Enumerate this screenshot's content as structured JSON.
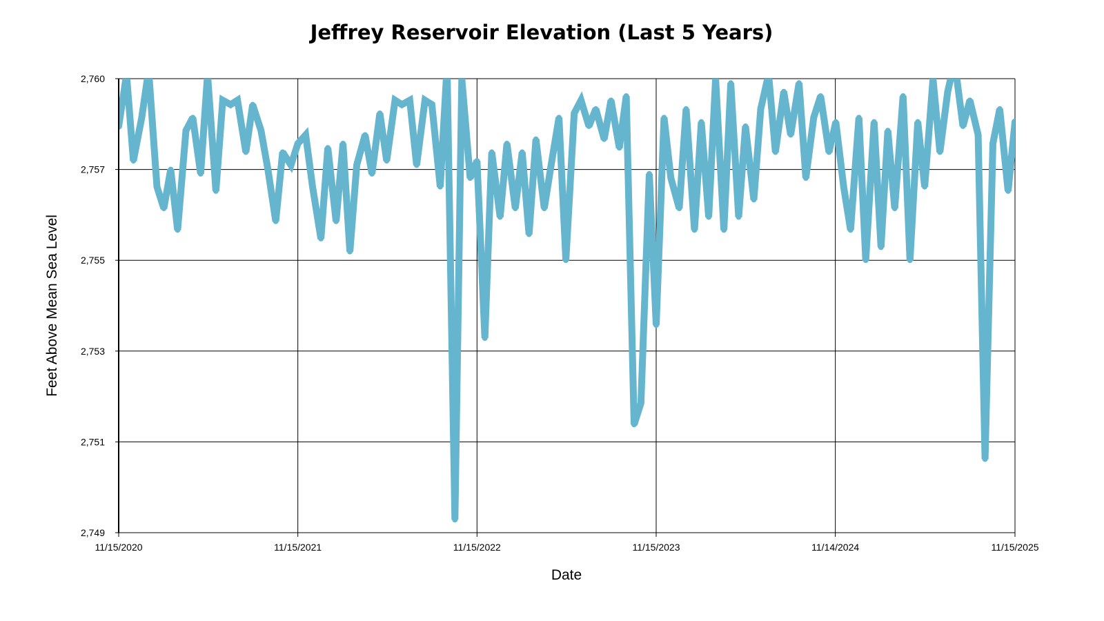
{
  "chart_data": {
    "type": "line",
    "title": "Jeffrey Reservoir Elevation (Last 5 Years)",
    "xlabel": "Date",
    "ylabel": "Feet Above Mean Sea Level",
    "xlim": [
      "2020-11-15",
      "2025-11-15"
    ],
    "ylim": [
      2749,
      2759.5
    ],
    "grid": true,
    "line_color": "#65b5cf",
    "x_ticks": [
      {
        "date": "2020-11-15",
        "label": "11/15/2020"
      },
      {
        "date": "2021-11-15",
        "label": "11/15/2021"
      },
      {
        "date": "2022-11-15",
        "label": "11/15/2022"
      },
      {
        "date": "2023-11-15",
        "label": "11/15/2023"
      },
      {
        "date": "2024-11-14",
        "label": "11/14/2024"
      },
      {
        "date": "2025-11-15",
        "label": "11/15/2025"
      }
    ],
    "y_ticks": [
      {
        "value": 2759.5,
        "label": "2,760"
      },
      {
        "value": 2757.4,
        "label": "2,757"
      },
      {
        "value": 2755.3,
        "label": "2,755"
      },
      {
        "value": 2753.2,
        "label": "2,753"
      },
      {
        "value": 2751.1,
        "label": "2,751"
      },
      {
        "value": 2749.0,
        "label": "2,749"
      }
    ],
    "x": [
      "2020-11-15",
      "2020-12-01",
      "2020-12-15",
      "2021-01-01",
      "2021-01-15",
      "2021-02-01",
      "2021-02-15",
      "2021-03-01",
      "2021-03-15",
      "2021-04-01",
      "2021-04-15",
      "2021-05-01",
      "2021-05-15",
      "2021-06-01",
      "2021-06-15",
      "2021-07-01",
      "2021-07-15",
      "2021-08-01",
      "2021-08-15",
      "2021-09-01",
      "2021-09-15",
      "2021-10-01",
      "2021-10-15",
      "2021-11-01",
      "2021-11-15",
      "2021-12-01",
      "2021-12-15",
      "2022-01-01",
      "2022-01-15",
      "2022-02-01",
      "2022-02-15",
      "2022-03-01",
      "2022-03-15",
      "2022-04-01",
      "2022-04-15",
      "2022-05-01",
      "2022-05-15",
      "2022-06-01",
      "2022-06-15",
      "2022-07-01",
      "2022-07-15",
      "2022-08-01",
      "2022-08-15",
      "2022-09-01",
      "2022-09-15",
      "2022-10-01",
      "2022-10-15",
      "2022-11-01",
      "2022-11-15",
      "2022-12-01",
      "2022-12-15",
      "2023-01-01",
      "2023-01-15",
      "2023-02-01",
      "2023-02-15",
      "2023-03-01",
      "2023-03-15",
      "2023-04-01",
      "2023-04-15",
      "2023-05-01",
      "2023-05-15",
      "2023-06-01",
      "2023-06-15",
      "2023-07-01",
      "2023-07-15",
      "2023-08-01",
      "2023-08-15",
      "2023-09-01",
      "2023-09-15",
      "2023-10-01",
      "2023-10-15",
      "2023-11-01",
      "2023-11-15",
      "2023-12-01",
      "2023-12-15",
      "2024-01-01",
      "2024-01-15",
      "2024-02-01",
      "2024-02-15",
      "2024-03-01",
      "2024-03-15",
      "2024-04-01",
      "2024-04-15",
      "2024-05-01",
      "2024-05-15",
      "2024-06-01",
      "2024-06-15",
      "2024-07-01",
      "2024-07-15",
      "2024-08-01",
      "2024-08-15",
      "2024-09-01",
      "2024-09-15",
      "2024-10-01",
      "2024-10-15",
      "2024-11-01",
      "2024-11-15",
      "2024-12-01",
      "2024-12-15",
      "2025-01-01",
      "2025-01-15",
      "2025-02-01",
      "2025-02-15",
      "2025-03-01",
      "2025-03-15",
      "2025-04-01",
      "2025-04-15",
      "2025-05-01",
      "2025-05-15",
      "2025-06-01",
      "2025-06-15",
      "2025-07-01",
      "2025-07-15",
      "2025-08-01",
      "2025-08-15",
      "2025-09-01",
      "2025-09-15",
      "2025-10-01",
      "2025-10-15",
      "2025-11-01",
      "2025-11-15"
    ],
    "values": [
      2758.4,
      2759.6,
      2757.6,
      2758.6,
      2759.7,
      2757.0,
      2756.5,
      2757.4,
      2756.0,
      2758.3,
      2758.6,
      2757.3,
      2759.6,
      2756.9,
      2759.0,
      2758.9,
      2759.0,
      2757.8,
      2758.9,
      2758.3,
      2757.4,
      2756.2,
      2757.8,
      2757.5,
      2758.0,
      2758.2,
      2757.0,
      2755.8,
      2757.9,
      2756.2,
      2758.0,
      2755.5,
      2757.5,
      2758.2,
      2757.3,
      2758.7,
      2757.6,
      2759.0,
      2758.9,
      2759.0,
      2757.5,
      2759.0,
      2758.9,
      2757.0,
      2759.8,
      2749.3,
      2759.5,
      2757.2,
      2757.6,
      2753.5,
      2757.8,
      2756.3,
      2758.0,
      2756.5,
      2757.8,
      2755.9,
      2758.1,
      2756.5,
      2757.5,
      2758.6,
      2755.3,
      2758.7,
      2759.0,
      2758.4,
      2758.8,
      2758.1,
      2759.0,
      2757.9,
      2759.1,
      2751.5,
      2752.0,
      2757.3,
      2753.8,
      2758.6,
      2757.2,
      2756.5,
      2758.8,
      2756.0,
      2758.5,
      2756.3,
      2759.5,
      2756.0,
      2759.4,
      2756.3,
      2758.4,
      2756.7,
      2758.8,
      2759.6,
      2757.8,
      2759.2,
      2758.2,
      2759.4,
      2757.2,
      2758.6,
      2759.1,
      2757.8,
      2758.5,
      2757.0,
      2756.0,
      2758.6,
      2755.3,
      2758.5,
      2755.6,
      2758.3,
      2756.5,
      2759.1,
      2755.3,
      2758.5,
      2757.0,
      2759.5,
      2757.8,
      2759.2,
      2759.9,
      2758.4,
      2759.0,
      2758.2,
      2750.7,
      2758.0,
      2758.8,
      2756.9,
      2758.5
    ]
  }
}
